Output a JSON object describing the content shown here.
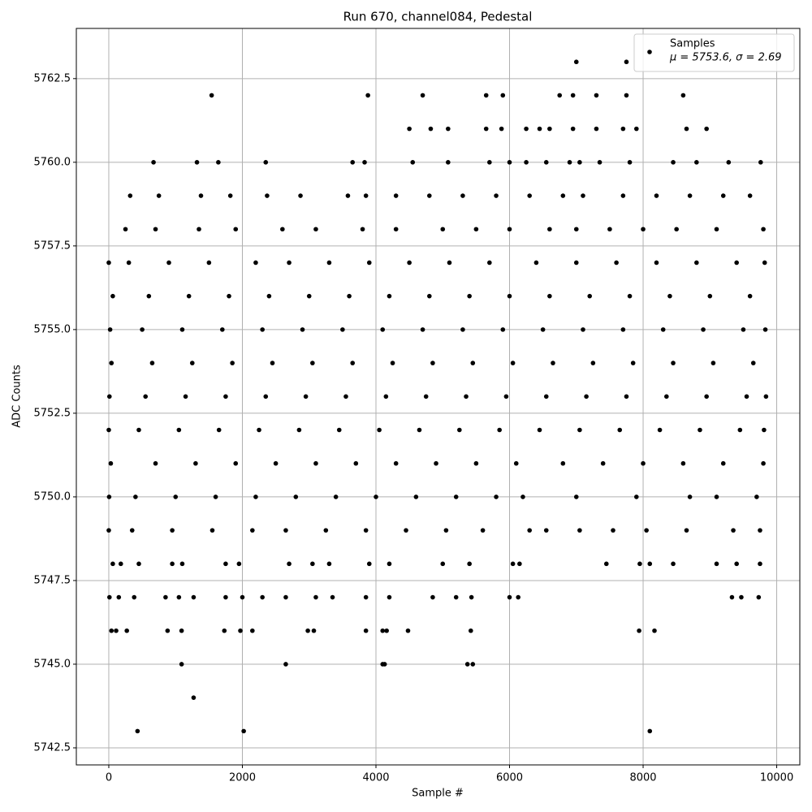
{
  "chart_data": {
    "type": "scatter",
    "title": "Run 670, channel084, Pedestal",
    "xlabel": "Sample #",
    "ylabel": "ADC Counts",
    "xlim": [
      -486,
      10346
    ],
    "ylim": [
      5741.99,
      5764.0
    ],
    "xticks": [
      0,
      2000,
      4000,
      6000,
      8000,
      10000
    ],
    "yticks": [
      5742.5,
      {
        "value": 5745.0,
        "label": "5745.0"
      },
      5747.5,
      {
        "value": 5750.0,
        "label": "5750.0"
      },
      5752.5,
      {
        "value": 5755.0,
        "label": "5755.0"
      },
      5757.5,
      {
        "value": 5760.0,
        "label": "5760.0"
      },
      5762.5
    ],
    "grid": true,
    "legend": "upper right",
    "legend_note": "μ = 5753.6, σ = 2.69",
    "series": [
      {
        "name": "Samples",
        "color": "#000000",
        "x": [
          0,
          300,
          900,
          1500,
          2200,
          2700,
          3300,
          3900,
          4500,
          5100,
          5700,
          6400,
          7000,
          7600,
          8200,
          8800,
          9400,
          9820,
          60,
          600,
          1200,
          1800,
          2400,
          3000,
          3600,
          4200,
          4800,
          5400,
          6000,
          6600,
          7200,
          7800,
          8400,
          9000,
          9600,
          20,
          500,
          1100,
          1700,
          2300,
          2900,
          3500,
          4100,
          4700,
          5300,
          5900,
          6500,
          7100,
          7700,
          8300,
          8900,
          9500,
          9830,
          40,
          650,
          1250,
          1850,
          2450,
          3050,
          3650,
          4250,
          4850,
          5450,
          6050,
          6650,
          7250,
          7850,
          8450,
          9050,
          9650,
          10,
          550,
          1150,
          1750,
          2350,
          2950,
          3550,
          4150,
          4750,
          5350,
          5950,
          6550,
          7150,
          7750,
          8350,
          8950,
          9550,
          9840,
          0,
          450,
          1050,
          1650,
          2250,
          2850,
          3450,
          4050,
          4650,
          5250,
          5850,
          6450,
          7050,
          7650,
          8250,
          8850,
          9450,
          9810,
          30,
          700,
          1300,
          1900,
          2500,
          3100,
          3700,
          4300,
          4900,
          5500,
          6100,
          6800,
          7400,
          8000,
          8600,
          9200,
          9800,
          5,
          400,
          1000,
          1600,
          2200,
          2800,
          3400,
          4000,
          4600,
          5200,
          5800,
          6200,
          7000,
          7900,
          8700,
          9100,
          9700,
          0,
          350,
          950,
          1550,
          2150,
          2650,
          3250,
          3850,
          4450,
          5050,
          5600,
          6300,
          6550,
          7050,
          7550,
          8050,
          8650,
          9350,
          9750,
          250,
          700,
          1350,
          1900,
          2600,
          3100,
          3800,
          4300,
          5000,
          5500,
          6000,
          6600,
          7000,
          7500,
          8000,
          8500,
          9100,
          9800,
          320,
          750,
          1380,
          1820,
          2370,
          2870,
          3580,
          3850,
          4300,
          4800,
          5300,
          5800,
          6300,
          6800,
          7100,
          7700,
          8200,
          8700,
          9200,
          9600,
          60,
          180,
          450,
          950,
          1100,
          1750,
          1950,
          2700,
          3050,
          3300,
          3900,
          4200,
          5000,
          5400,
          6050,
          6150,
          7450,
          7950,
          8100,
          8450,
          9100,
          9400,
          9750,
          10,
          150,
          380,
          850,
          1050,
          1270,
          1750,
          2000,
          2300,
          2650,
          3100,
          3350,
          3850,
          4200,
          4850,
          5200,
          5430,
          6000,
          6130,
          9330,
          9470,
          9730,
          670,
          1320,
          1640,
          2350,
          3650,
          3830,
          4550,
          5080,
          5700,
          6000,
          6250,
          6550,
          6900,
          7050,
          7350,
          7800,
          8450,
          8800,
          9280,
          9760,
          4500,
          4820,
          5080,
          5650,
          5880,
          6250,
          6450,
          6600,
          6950,
          7300,
          7700,
          7900,
          8650,
          8950,
          40,
          110,
          270,
          880,
          1090,
          1730,
          1970,
          2150,
          2980,
          3070,
          3850,
          4100,
          4160,
          4480,
          5420,
          7940,
          8170,
          1540,
          3880,
          4700,
          5650,
          5900,
          6750,
          6950,
          7300,
          7750,
          8600,
          7000,
          7750,
          1090,
          2650,
          4100,
          4130,
          5370,
          5450,
          1270,
          430,
          2020,
          8100
        ],
        "y": [
          5757,
          5757,
          5757,
          5757,
          5757,
          5757,
          5757,
          5757,
          5757,
          5757,
          5757,
          5757,
          5757,
          5757,
          5757,
          5757,
          5757,
          5757,
          5756,
          5756,
          5756,
          5756,
          5756,
          5756,
          5756,
          5756,
          5756,
          5756,
          5756,
          5756,
          5756,
          5756,
          5756,
          5756,
          5756,
          5755,
          5755,
          5755,
          5755,
          5755,
          5755,
          5755,
          5755,
          5755,
          5755,
          5755,
          5755,
          5755,
          5755,
          5755,
          5755,
          5755,
          5755,
          5754,
          5754,
          5754,
          5754,
          5754,
          5754,
          5754,
          5754,
          5754,
          5754,
          5754,
          5754,
          5754,
          5754,
          5754,
          5754,
          5754,
          5753,
          5753,
          5753,
          5753,
          5753,
          5753,
          5753,
          5753,
          5753,
          5753,
          5753,
          5753,
          5753,
          5753,
          5753,
          5753,
          5753,
          5753,
          5752,
          5752,
          5752,
          5752,
          5752,
          5752,
          5752,
          5752,
          5752,
          5752,
          5752,
          5752,
          5752,
          5752,
          5752,
          5752,
          5752,
          5752,
          5751,
          5751,
          5751,
          5751,
          5751,
          5751,
          5751,
          5751,
          5751,
          5751,
          5751,
          5751,
          5751,
          5751,
          5751,
          5751,
          5751,
          5750,
          5750,
          5750,
          5750,
          5750,
          5750,
          5750,
          5750,
          5750,
          5750,
          5750,
          5750,
          5750,
          5750,
          5750,
          5750,
          5750,
          5749,
          5749,
          5749,
          5749,
          5749,
          5749,
          5749,
          5749,
          5749,
          5749,
          5749,
          5749,
          5749,
          5749,
          5749,
          5749,
          5749,
          5749,
          5749,
          5758,
          5758,
          5758,
          5758,
          5758,
          5758,
          5758,
          5758,
          5758,
          5758,
          5758,
          5758,
          5758,
          5758,
          5758,
          5758,
          5758,
          5758,
          5759,
          5759,
          5759,
          5759,
          5759,
          5759,
          5759,
          5759,
          5759,
          5759,
          5759,
          5759,
          5759,
          5759,
          5759,
          5759,
          5759,
          5759,
          5759,
          5759,
          5748,
          5748,
          5748,
          5748,
          5748,
          5748,
          5748,
          5748,
          5748,
          5748,
          5748,
          5748,
          5748,
          5748,
          5748,
          5748,
          5748,
          5748,
          5748,
          5748,
          5748,
          5748,
          5748,
          5747,
          5747,
          5747,
          5747,
          5747,
          5747,
          5747,
          5747,
          5747,
          5747,
          5747,
          5747,
          5747,
          5747,
          5747,
          5747,
          5747,
          5747,
          5747,
          5747,
          5747,
          5747,
          5760,
          5760,
          5760,
          5760,
          5760,
          5760,
          5760,
          5760,
          5760,
          5760,
          5760,
          5760,
          5760,
          5760,
          5760,
          5760,
          5760,
          5760,
          5760,
          5760,
          5761,
          5761,
          5761,
          5761,
          5761,
          5761,
          5761,
          5761,
          5761,
          5761,
          5761,
          5761,
          5761,
          5761,
          5746,
          5746,
          5746,
          5746,
          5746,
          5746,
          5746,
          5746,
          5746,
          5746,
          5746,
          5746,
          5746,
          5746,
          5746,
          5746,
          5746,
          5762,
          5762,
          5762,
          5762,
          5762,
          5762,
          5762,
          5762,
          5762,
          5762,
          5763,
          5763,
          5745,
          5745,
          5745,
          5745,
          5745,
          5745,
          5744,
          5743,
          5743,
          5743
        ]
      }
    ]
  }
}
